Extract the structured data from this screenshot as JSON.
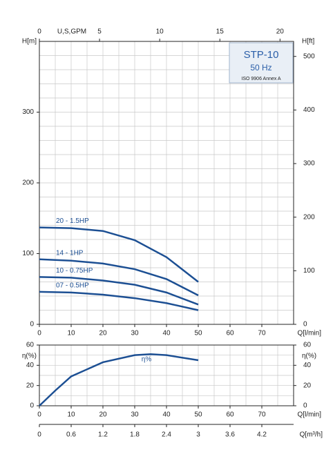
{
  "chart_data": [
    {
      "type": "line",
      "x": [
        0,
        10,
        20,
        30,
        40,
        50
      ],
      "series": [
        {
          "name": "20 - 1.5HP",
          "color": "#1c4f93",
          "values": [
            137,
            136,
            132,
            119,
            95,
            60
          ]
        },
        {
          "name": "14 - 1HP",
          "color": "#1c4f93",
          "values": [
            92,
            90,
            86,
            78,
            64,
            41
          ]
        },
        {
          "name": "10 - 0.75HP",
          "color": "#1c4f93",
          "values": [
            67,
            66,
            62,
            56,
            45,
            28
          ]
        },
        {
          "name": "07 - 0.5HP",
          "color": "#1c4f93",
          "values": [
            46,
            45,
            42,
            37,
            30,
            20
          ]
        }
      ],
      "xlim": [
        0,
        80
      ],
      "xticks": [
        0,
        10,
        20,
        30,
        40,
        50,
        60,
        70
      ],
      "xlabel": "Q[l/min]",
      "ylim": [
        0,
        400
      ],
      "yticks": [
        0,
        100,
        200,
        300
      ],
      "ylabel": "H[m]",
      "x2lim": [
        0,
        21.13
      ],
      "x2ticks": [
        0,
        5,
        10,
        15,
        20
      ],
      "x2label": "U,S,GPM",
      "y2lim": [
        0,
        528
      ],
      "y2ticks": [
        0,
        100,
        200,
        300,
        400,
        500
      ],
      "y2label": "H[ft]",
      "grid": true,
      "box": {
        "title": "STP-10",
        "subtitle": "50 Hz",
        "note": "ISO 9906 Annex A"
      }
    },
    {
      "type": "line",
      "x": [
        0,
        5,
        10,
        20,
        30,
        35,
        40,
        50
      ],
      "series": [
        {
          "name": "η%",
          "color": "#1c4f93",
          "values": [
            0,
            15,
            29,
            43,
            50,
            51,
            50,
            45
          ]
        }
      ],
      "xlim": [
        0,
        80
      ],
      "xticks": [
        0,
        10,
        20,
        30,
        40,
        50,
        60,
        70
      ],
      "xlabel": "Q[l/min]",
      "ylim": [
        0,
        60
      ],
      "yticks": [
        0,
        20,
        40,
        60
      ],
      "ylabel": "η(%)",
      "y2lim": [
        0,
        60
      ],
      "y2ticks": [
        0,
        20,
        40,
        60
      ],
      "y2label": "η(%)",
      "x2lim": [
        0,
        4.8
      ],
      "x2ticks": [
        0,
        0.6,
        1.2,
        1.8,
        2.4,
        3,
        3.6,
        4.2
      ],
      "x2label": "Q[m³/h]",
      "grid": true
    }
  ]
}
